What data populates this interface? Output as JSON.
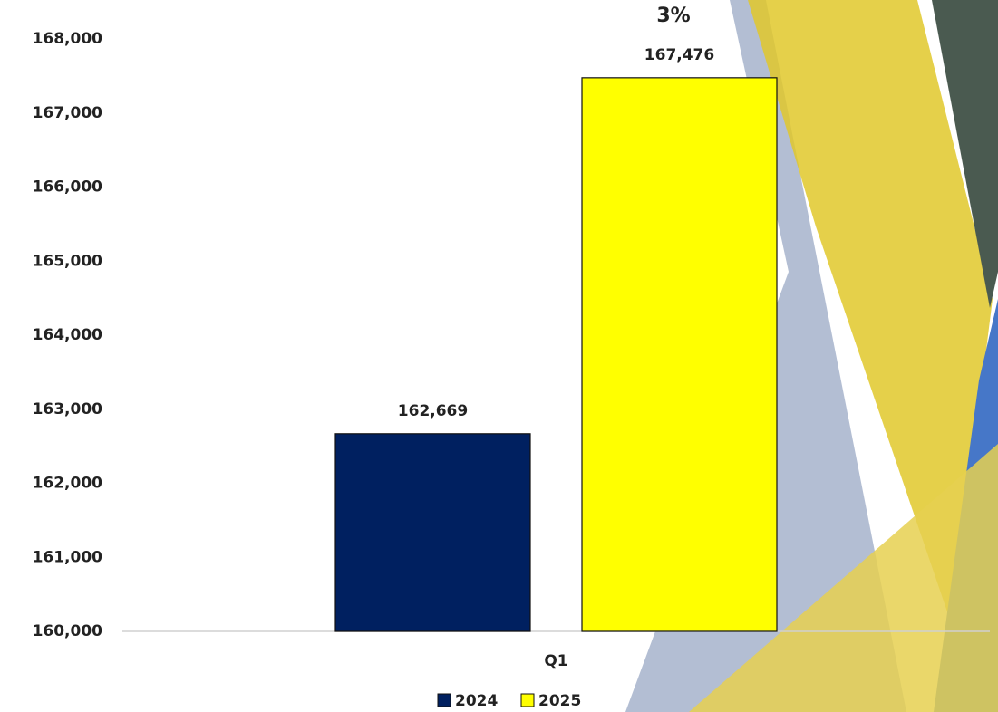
{
  "chart_data": {
    "type": "bar",
    "annotation": "3%",
    "categories": [
      "Q1"
    ],
    "series": [
      {
        "name": "2024",
        "color": "#002060",
        "values": [
          162669
        ],
        "value_labels": [
          "162,669"
        ]
      },
      {
        "name": "2025",
        "color": "#ffff00",
        "values": [
          167476
        ],
        "value_labels": [
          "167,476"
        ]
      }
    ],
    "ylim": [
      160000,
      168000
    ],
    "yticks": [
      {
        "value": 160000,
        "label": "160,000"
      },
      {
        "value": 161000,
        "label": "161,000"
      },
      {
        "value": 162000,
        "label": "162,000"
      },
      {
        "value": 163000,
        "label": "163,000"
      },
      {
        "value": 164000,
        "label": "164,000"
      },
      {
        "value": 165000,
        "label": "165,000"
      },
      {
        "value": 166000,
        "label": "166,000"
      },
      {
        "value": 167000,
        "label": "167,000"
      },
      {
        "value": 168000,
        "label": "168,000"
      }
    ],
    "grid": false,
    "legend": "bottom"
  }
}
